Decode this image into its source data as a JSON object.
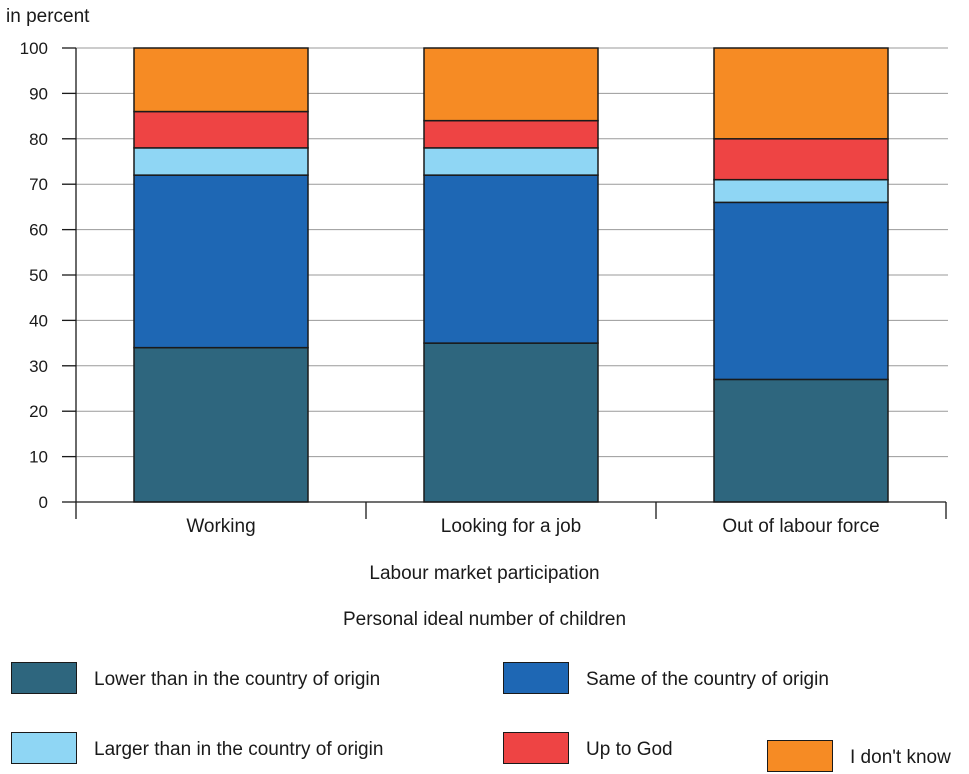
{
  "chart_data": {
    "type": "bar",
    "stacked": true,
    "ylabel": "in percent",
    "xlabel": "Labour market participation",
    "legend_title": "Personal ideal number of children",
    "ylim": [
      0,
      100
    ],
    "yticks": [
      0,
      10,
      20,
      30,
      40,
      50,
      60,
      70,
      80,
      90,
      100
    ],
    "grid": true,
    "legend_position": "bottom",
    "categories": [
      "Working",
      "Looking for a job",
      "Out of labour force"
    ],
    "series": [
      {
        "name": "Lower than in the country of origin",
        "color": "#2e667e",
        "values": [
          34,
          35,
          27
        ]
      },
      {
        "name": "Same of the country of origin",
        "color": "#1e67b4",
        "values": [
          38,
          37,
          39
        ]
      },
      {
        "name": "Larger than in the country of origin",
        "color": "#8fd6f4",
        "values": [
          6,
          6,
          5
        ]
      },
      {
        "name": "Up to God",
        "color": "#ee4444",
        "values": [
          8,
          6,
          9
        ]
      },
      {
        "name": "I don't know",
        "color": "#f68b24",
        "values": [
          14,
          16,
          20
        ]
      }
    ]
  }
}
